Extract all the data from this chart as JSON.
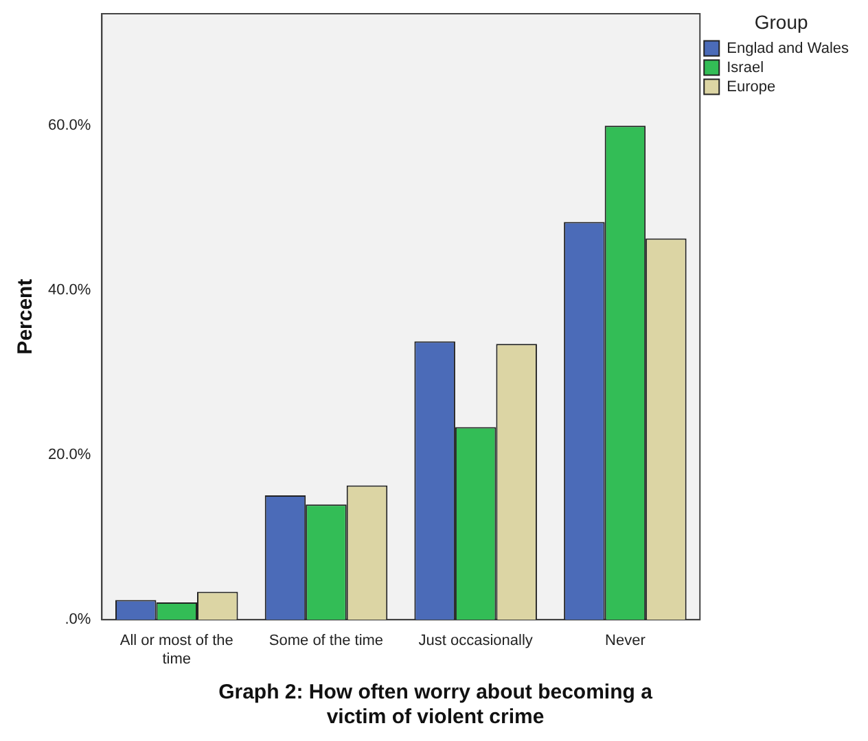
{
  "chart_data": {
    "type": "bar",
    "title": "Graph 2: How often worry about becoming a victim of violent crime",
    "ylabel": "Percent",
    "legend_title": "Group",
    "categories": [
      "All or most of the time",
      "Some of the time",
      "Just occasionally",
      "Never"
    ],
    "series": [
      {
        "name": "Englad and Wales",
        "color": "#4b6bb8",
        "values": [
          2.4,
          15.1,
          33.8,
          48.3
        ]
      },
      {
        "name": "Israel",
        "color": "#33bd56",
        "values": [
          2.1,
          14.0,
          23.4,
          60.0
        ]
      },
      {
        "name": "Europe",
        "color": "#dcd5a4",
        "values": [
          3.4,
          16.3,
          33.5,
          46.3
        ]
      }
    ],
    "ylim": [
      0,
      73.6
    ],
    "yticks": [
      {
        "value": 0,
        "label": ".0%"
      },
      {
        "value": 20,
        "label": "20.0%"
      },
      {
        "value": 40,
        "label": "40.0%"
      },
      {
        "value": 60,
        "label": "60.0%"
      }
    ],
    "grid": false,
    "legend": "top right"
  }
}
